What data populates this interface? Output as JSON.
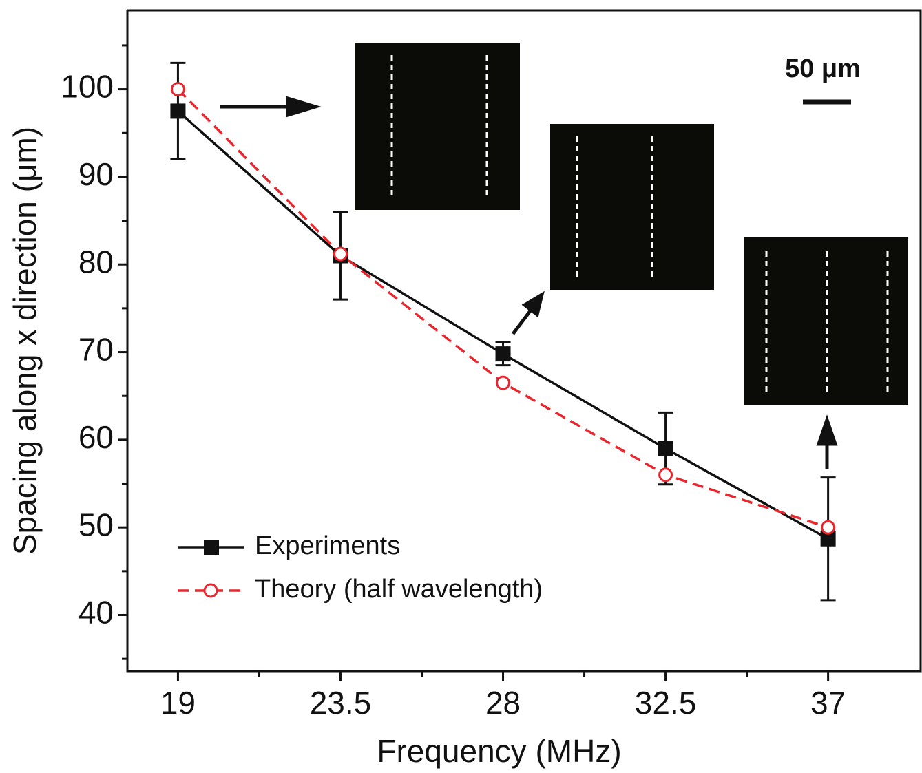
{
  "chart_data": {
    "type": "line",
    "x_label": "Frequency (MHz)",
    "y_label": "Spacing along x direction (μm)",
    "scale_bar_label": "50 μm",
    "x": [
      19,
      23.5,
      28,
      32.5,
      37
    ],
    "series": [
      {
        "name": "Experiments",
        "color": "#111111",
        "marker": "square",
        "dash": false,
        "values": [
          97.5,
          81,
          69.8,
          59,
          48.7
        ],
        "errors": [
          5.5,
          5,
          1.3,
          4.1,
          7
        ]
      },
      {
        "name": "Theory (half wavelength)",
        "color": "#e8262d",
        "marker": "circle",
        "dash": true,
        "values": [
          100,
          81.2,
          66.5,
          56,
          50
        ]
      }
    ],
    "xlim": [
      17.6,
      39.6
    ],
    "ylim": [
      33.6,
      109
    ],
    "xticks": [
      19,
      23.5,
      28,
      32.5,
      37
    ],
    "xminorticks": [
      21.25,
      25.75,
      30.25,
      34.75
    ],
    "yticks": [
      40,
      50,
      60,
      70,
      80,
      90,
      100
    ],
    "yminorticks": [
      35,
      45,
      55,
      65,
      75,
      85,
      95,
      105
    ],
    "grid": false,
    "legend": "lower left"
  }
}
